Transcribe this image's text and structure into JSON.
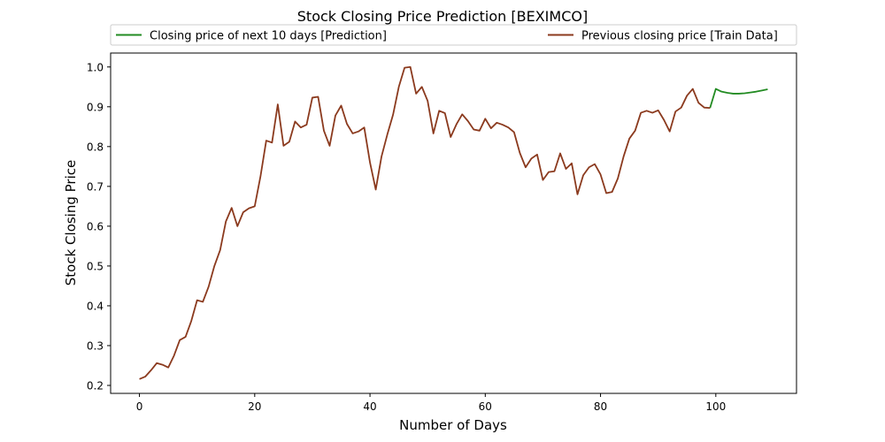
{
  "chart_data": {
    "type": "line",
    "title": "Stock Closing Price Prediction [BEXIMCO]",
    "xlabel": "Number of Days",
    "ylabel": "Stock Closing Price",
    "xlim": [
      -5,
      114
    ],
    "ylim": [
      0.18,
      1.035
    ],
    "xticks": [
      0,
      20,
      40,
      60,
      80,
      100
    ],
    "yticks": [
      0.2,
      0.3,
      0.4,
      0.5,
      0.6,
      0.7,
      0.8,
      0.9,
      1.0
    ],
    "xtick_labels": [
      "0",
      "20",
      "40",
      "60",
      "80",
      "100"
    ],
    "ytick_labels": [
      "0.2",
      "0.3",
      "0.4",
      "0.5",
      "0.6",
      "0.7",
      "0.8",
      "0.9",
      "1.0"
    ],
    "grid": false,
    "legend_position": "top (above plot, two columns)",
    "series": [
      {
        "name": "Closing price of next 10 days [Prediction]",
        "color": "#228b22",
        "x": [
          99,
          100,
          101,
          102,
          103,
          104,
          105,
          106,
          107,
          108,
          109
        ],
        "values": [
          0.897,
          0.945,
          0.938,
          0.935,
          0.933,
          0.933,
          0.934,
          0.936,
          0.938,
          0.941,
          0.944
        ]
      },
      {
        "name": "Previous closing price [Train Data]",
        "color": "#8b3a1e",
        "x": [
          0,
          1,
          2,
          3,
          4,
          5,
          6,
          7,
          8,
          9,
          10,
          11,
          12,
          13,
          14,
          15,
          16,
          17,
          18,
          19,
          20,
          21,
          22,
          23,
          24,
          25,
          26,
          27,
          28,
          29,
          30,
          31,
          32,
          33,
          34,
          35,
          36,
          37,
          38,
          39,
          40,
          41,
          42,
          43,
          44,
          45,
          46,
          47,
          48,
          49,
          50,
          51,
          52,
          53,
          54,
          55,
          56,
          57,
          58,
          59,
          60,
          61,
          62,
          63,
          64,
          65,
          66,
          67,
          68,
          69,
          70,
          71,
          72,
          73,
          74,
          75,
          76,
          77,
          78,
          79,
          80,
          81,
          82,
          83,
          84,
          85,
          86,
          87,
          88,
          89,
          90,
          91,
          92,
          93,
          94,
          95,
          96,
          97,
          98,
          99
        ],
        "values": [
          0.216,
          0.222,
          0.238,
          0.256,
          0.252,
          0.245,
          0.275,
          0.314,
          0.322,
          0.362,
          0.414,
          0.41,
          0.448,
          0.5,
          0.54,
          0.612,
          0.646,
          0.6,
          0.635,
          0.645,
          0.65,
          0.725,
          0.815,
          0.81,
          0.906,
          0.802,
          0.812,
          0.863,
          0.848,
          0.855,
          0.923,
          0.925,
          0.84,
          0.802,
          0.878,
          0.903,
          0.857,
          0.833,
          0.838,
          0.848,
          0.76,
          0.692,
          0.775,
          0.83,
          0.88,
          0.95,
          0.998,
          1.0,
          0.933,
          0.95,
          0.915,
          0.833,
          0.89,
          0.884,
          0.824,
          0.856,
          0.881,
          0.864,
          0.843,
          0.84,
          0.87,
          0.846,
          0.86,
          0.855,
          0.848,
          0.836,
          0.784,
          0.748,
          0.77,
          0.78,
          0.716,
          0.736,
          0.738,
          0.783,
          0.744,
          0.758,
          0.68,
          0.728,
          0.748,
          0.756,
          0.73,
          0.683,
          0.686,
          0.72,
          0.775,
          0.82,
          0.84,
          0.885,
          0.89,
          0.885,
          0.891,
          0.867,
          0.838,
          0.888,
          0.898,
          0.928,
          0.945,
          0.91,
          0.898,
          0.897
        ]
      }
    ]
  }
}
